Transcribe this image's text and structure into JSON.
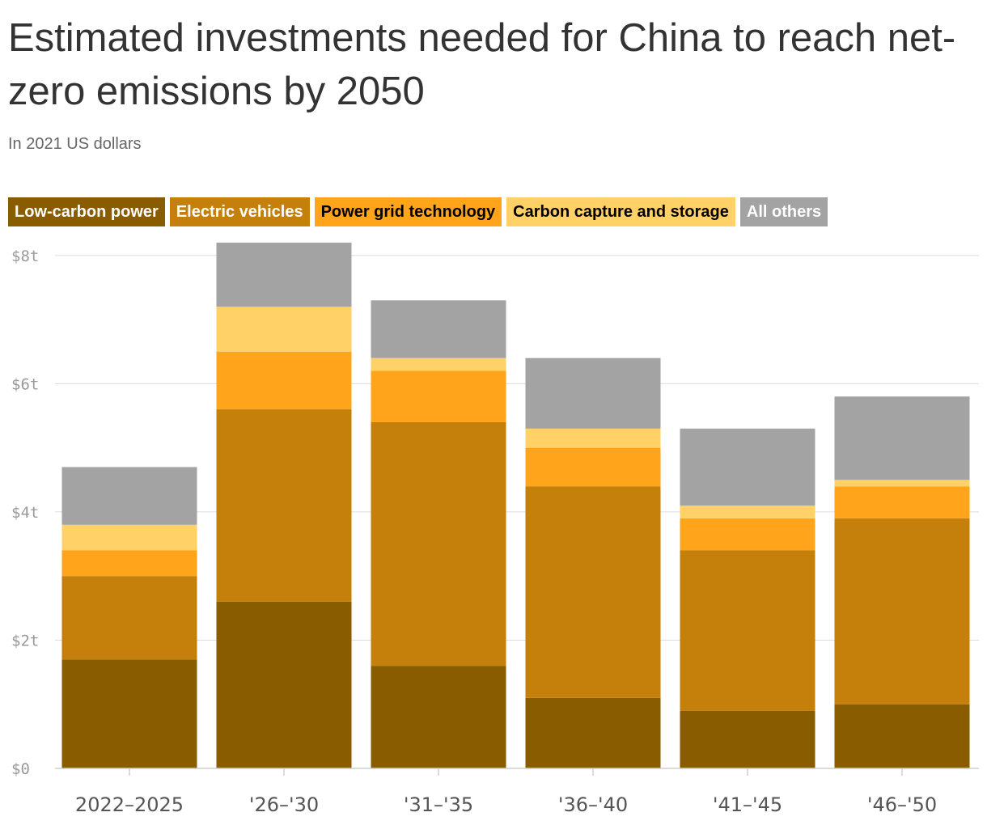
{
  "title": "Estimated investments needed for China to reach net-zero emissions by 2050",
  "subtitle": "In 2021 US dollars",
  "chart_data": {
    "type": "bar",
    "stacked": true,
    "categories": [
      "2022–2025",
      "'26–'30",
      "'31–'35",
      "'36–'40",
      "'41–'45",
      "'46–'50"
    ],
    "series": [
      {
        "name": "Low-carbon power",
        "color": "#8a5c00",
        "text_color": "#ffffff",
        "values": [
          1.7,
          2.6,
          1.6,
          1.1,
          0.9,
          1.0
        ]
      },
      {
        "name": "Electric vehicles",
        "color": "#c4800a",
        "text_color": "#ffffff",
        "values": [
          1.3,
          3.0,
          3.8,
          3.3,
          2.5,
          2.9
        ]
      },
      {
        "name": "Power grid technology",
        "color": "#ffa41b",
        "text_color": "#000000",
        "values": [
          0.4,
          0.9,
          0.8,
          0.6,
          0.5,
          0.5
        ]
      },
      {
        "name": "Carbon capture and storage",
        "color": "#ffd166",
        "text_color": "#000000",
        "values": [
          0.4,
          0.7,
          0.2,
          0.3,
          0.2,
          0.1
        ]
      },
      {
        "name": "All others",
        "color": "#a2a3a2",
        "text_color": "#ffffff",
        "values": [
          0.9,
          1.0,
          0.9,
          1.1,
          1.2,
          1.3
        ]
      }
    ],
    "ylim": [
      0,
      8.2
    ],
    "yticks": [
      {
        "value": 0,
        "label": "$0"
      },
      {
        "value": 2,
        "label": "$2t"
      },
      {
        "value": 4,
        "label": "$4t"
      },
      {
        "value": 6,
        "label": "$6t"
      },
      {
        "value": 8,
        "label": "$8t"
      }
    ],
    "grid": true,
    "legend_position": "top-left",
    "xlabel": "",
    "ylabel": ""
  }
}
